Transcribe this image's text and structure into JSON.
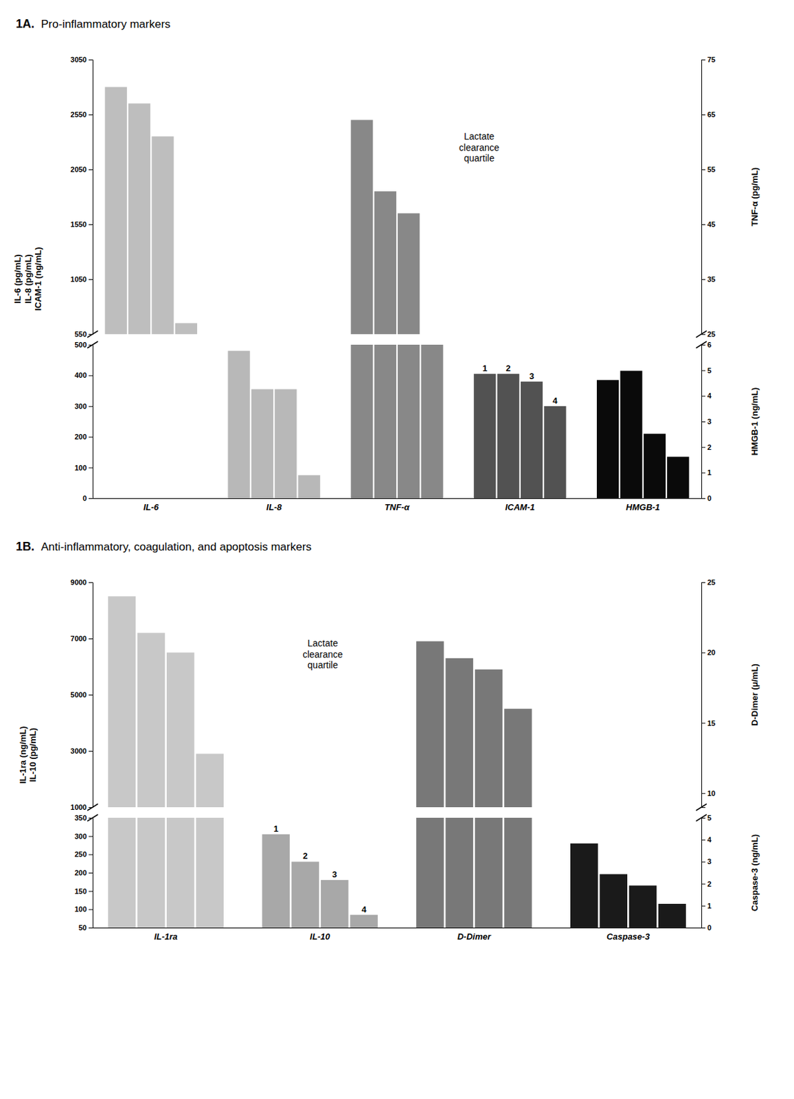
{
  "chart_data": [
    {
      "type": "bar",
      "title": "1A.",
      "subtitle": "Pro-inflammatory markers",
      "categories": [
        "IL-6",
        "IL-8",
        "TNF-α",
        "ICAM-1",
        "HMGB-1"
      ],
      "series": [
        {
          "values": [
            2800,
            null,
            2500,
            null,
            null
          ]
        },
        {
          "values": [
            2650,
            null,
            1850,
            null,
            null
          ]
        },
        {
          "values": [
            2350,
            null,
            1650,
            null,
            null
          ]
        },
        {
          "values": [
            650,
            null,
            null,
            null,
            null
          ]
        }
      ],
      "colors": [
        "#bebebe",
        null,
        "#888888",
        null,
        null
      ],
      "ylim": [
        550,
        3050
      ],
      "yticks": [
        550,
        1050,
        1550,
        2050,
        2550,
        3050
      ],
      "y2lim": [
        25,
        75
      ],
      "y2ticks": [
        25,
        35,
        45,
        55,
        65,
        75
      ],
      "y_label": "IL-6 (pg/mL)\nIL-8 (pg/mL)\nICAM-1 (ng/mL)",
      "y2_label": "TNF-α (pg/mL)",
      "annotations": [
        {
          "text": "Lactate\nclearance\nquartile"
        }
      ],
      "tick_labels": "y"
    },
    {
      "type": "bar",
      "categories": [
        "IL-6",
        "IL-8",
        "TNF-α",
        "ICAM-1",
        "HMGB-1"
      ],
      "series": [
        {
          "values": [
            null,
            480,
            500,
            405,
            385
          ]
        },
        {
          "values": [
            null,
            355,
            500,
            405,
            415
          ]
        },
        {
          "values": [
            null,
            355,
            500,
            380,
            210
          ]
        },
        {
          "values": [
            null,
            75,
            500,
            300,
            135
          ]
        }
      ],
      "colors": [
        null,
        "#b8b8b8",
        "#888888",
        "#525252",
        "#0a0a0a"
      ],
      "ylim": [
        0,
        500
      ],
      "yticks": [
        0,
        100,
        200,
        300,
        400,
        500
      ],
      "y2lim": [
        0,
        6
      ],
      "y2ticks": [
        0,
        1,
        2,
        3,
        4,
        5,
        6
      ],
      "y2_label": "HMGB-1 (ng/mL)",
      "annotations": [
        {
          "text": "1",
          "x": "ICAM-1"
        },
        {
          "text": "2",
          "x": "ICAM-1"
        },
        {
          "text": "3",
          "x": "ICAM-1"
        },
        {
          "text": "4",
          "x": "ICAM-1"
        }
      ]
    },
    {
      "type": "bar",
      "title": "1B.",
      "subtitle": "Anti-inflammatory, coagulation, and apoptosis markers",
      "categories": [
        "IL-1ra",
        "IL-10",
        "D-Dimer",
        "Caspase-3"
      ],
      "series": [
        {
          "values": [
            8500,
            null,
            6900,
            null
          ]
        },
        {
          "values": [
            7200,
            null,
            6300,
            null
          ]
        },
        {
          "values": [
            6500,
            null,
            5900,
            null
          ]
        },
        {
          "values": [
            2900,
            null,
            4500,
            null
          ]
        }
      ],
      "colors": [
        "#c8c8c8",
        null,
        "#787878",
        null
      ],
      "ylim": [
        1000,
        9000
      ],
      "yticks": [
        1000,
        3000,
        5000,
        7000,
        9000
      ],
      "y2lim": [
        9,
        25
      ],
      "y2ticks": [
        10,
        15,
        20,
        25
      ],
      "y_label": "IL-1ra (ng/mL)\nIL-10 (pg/mL)",
      "y2_label": "D-Dimer (μ/mL)",
      "annotations": [
        {
          "text": "Lactate\nclearance\nquartile"
        }
      ],
      "tick_labels": "y"
    },
    {
      "type": "bar",
      "categories": [
        "IL-1ra",
        "IL-10",
        "D-Dimer",
        "Caspase-3"
      ],
      "series": [
        {
          "values": [
            350,
            305,
            350,
            280
          ]
        },
        {
          "values": [
            350,
            230,
            350,
            196
          ]
        },
        {
          "values": [
            350,
            180,
            350,
            165
          ]
        },
        {
          "values": [
            350,
            85,
            350,
            115
          ]
        }
      ],
      "colors": [
        "#c8c8c8",
        "#a8a8a8",
        "#787878",
        "#1a1a1a"
      ],
      "ylim": [
        50,
        350
      ],
      "yticks": [
        50,
        100,
        150,
        200,
        250,
        300,
        350
      ],
      "y2lim": [
        0,
        5
      ],
      "y2ticks": [
        0,
        1,
        2,
        3,
        4,
        5
      ],
      "y2_label": "Caspase-3 (ng/mL)",
      "annotations": [
        {
          "text": "1",
          "x": "IL-10"
        },
        {
          "text": "2",
          "x": "IL-10"
        },
        {
          "text": "3",
          "x": "IL-10"
        },
        {
          "text": "4",
          "x": "IL-10"
        }
      ]
    }
  ]
}
